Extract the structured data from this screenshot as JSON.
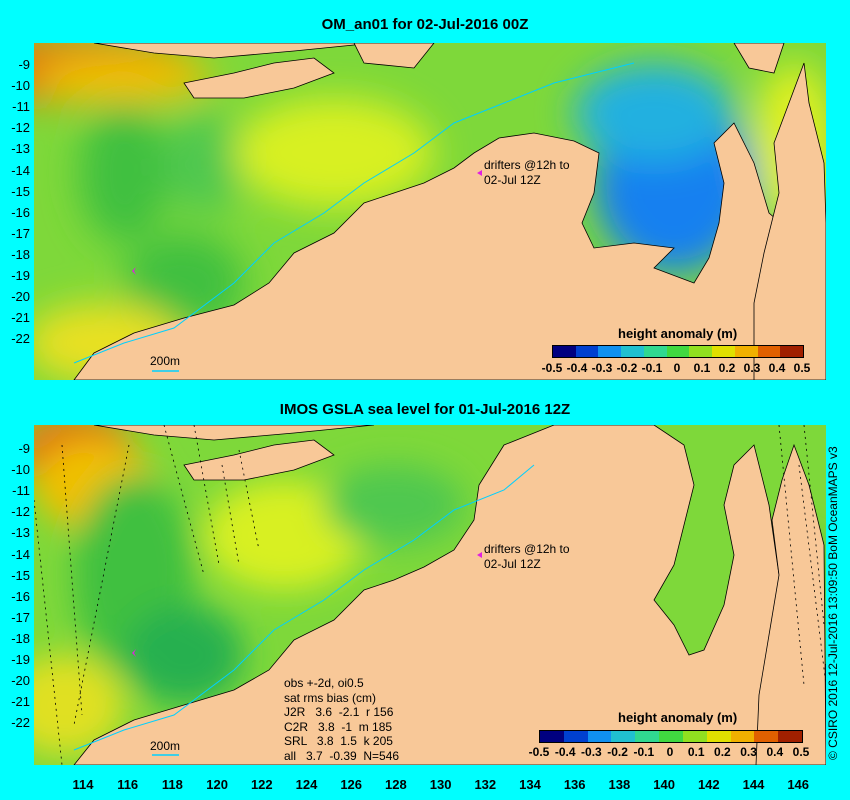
{
  "top_panel": {
    "title": "OM_an01 for 02-Jul-2016 00Z",
    "drifter_note_line1": "drifters @12h to",
    "drifter_note_line2": "02-Jul 12Z",
    "isobath_label": "200m",
    "colorbar_title": "height anomaly (m)"
  },
  "bottom_panel": {
    "title": "IMOS GSLA sea level  for 01-Jul-2016 12Z",
    "drifter_note_line1": "drifters @12h to",
    "drifter_note_line2": "02-Jul 12Z",
    "isobath_label": "200m",
    "colorbar_title": "height anomaly (m)",
    "stats": [
      "obs +-2d, oi0.5",
      "sat rms bias (cm)",
      "J2R   3.6  -2.1  r 156",
      "C2R   3.8  -1  m 185",
      "SRL   3.8  1.5  k 205",
      "all   3.7  -0.39  N=546"
    ]
  },
  "lat_labels": [
    "-9",
    "-10",
    "-11",
    "-12",
    "-13",
    "-14",
    "-15",
    "-16",
    "-17",
    "-18",
    "-19",
    "-20",
    "-21",
    "-22"
  ],
  "lon_labels": [
    "114",
    "116",
    "118",
    "120",
    "122",
    "124",
    "126",
    "128",
    "130",
    "132",
    "134",
    "136",
    "138",
    "140",
    "142",
    "144",
    "146"
  ],
  "colorbar_ticks": [
    "-0.5",
    "-0.4",
    "-0.3",
    "-0.2",
    "-0.1",
    "0",
    "0.1",
    "0.2",
    "0.3",
    "0.4",
    "0.5"
  ],
  "colorbar_colors": [
    "#000080",
    "#0040d0",
    "#1090f0",
    "#20c0d0",
    "#30d890",
    "#40d840",
    "#90e020",
    "#e0e000",
    "#f0b000",
    "#e06000",
    "#a02000"
  ],
  "credit": "© CSIRO 2016  12-Jul-2016 13:09:50 BoM OceanMAPS v3",
  "colors": {
    "background": "#00ffff",
    "land": "#f8c898",
    "ocean_base": "#7ed83a",
    "drifter": "#e020e0"
  }
}
